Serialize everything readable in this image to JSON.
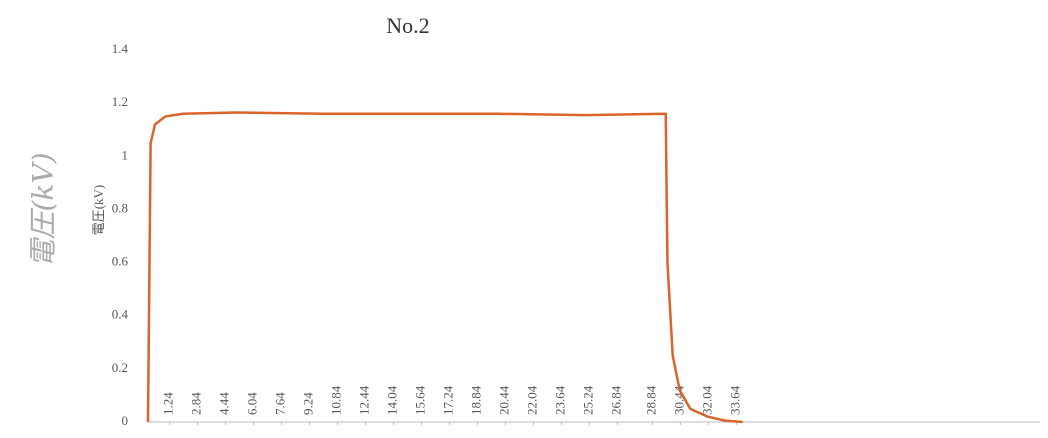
{
  "chart_data": {
    "type": "line",
    "title": "No.2",
    "y_label": "電圧(kV)",
    "annotation": "電圧(kV)",
    "x": [
      0,
      0.15,
      0.4,
      1,
      2,
      5,
      10,
      15,
      20,
      25,
      29.6,
      29.7,
      30,
      30.4,
      31,
      32,
      33,
      34
    ],
    "series": [
      {
        "name": "No.2",
        "color": "#d9652b",
        "values": [
          0,
          1.05,
          1.12,
          1.15,
          1.16,
          1.165,
          1.16,
          1.16,
          1.16,
          1.155,
          1.16,
          0.6,
          0.25,
          0.12,
          0.05,
          0.02,
          0.005,
          0
        ]
      }
    ],
    "xlim": [
      0,
      51
    ],
    "xticks": [
      1.24,
      2.84,
      4.44,
      6.04,
      7.64,
      9.24,
      10.84,
      12.44,
      14.04,
      15.64,
      17.24,
      18.84,
      20.44,
      22.04,
      23.64,
      25.24,
      26.84,
      28.84,
      30.44,
      32.04,
      33.64
    ],
    "ylim": [
      0,
      1.4
    ],
    "yticks": [
      0,
      0.2,
      0.4,
      0.6,
      0.8,
      1,
      1.2,
      1.4
    ],
    "grid": false,
    "legend": false
  }
}
